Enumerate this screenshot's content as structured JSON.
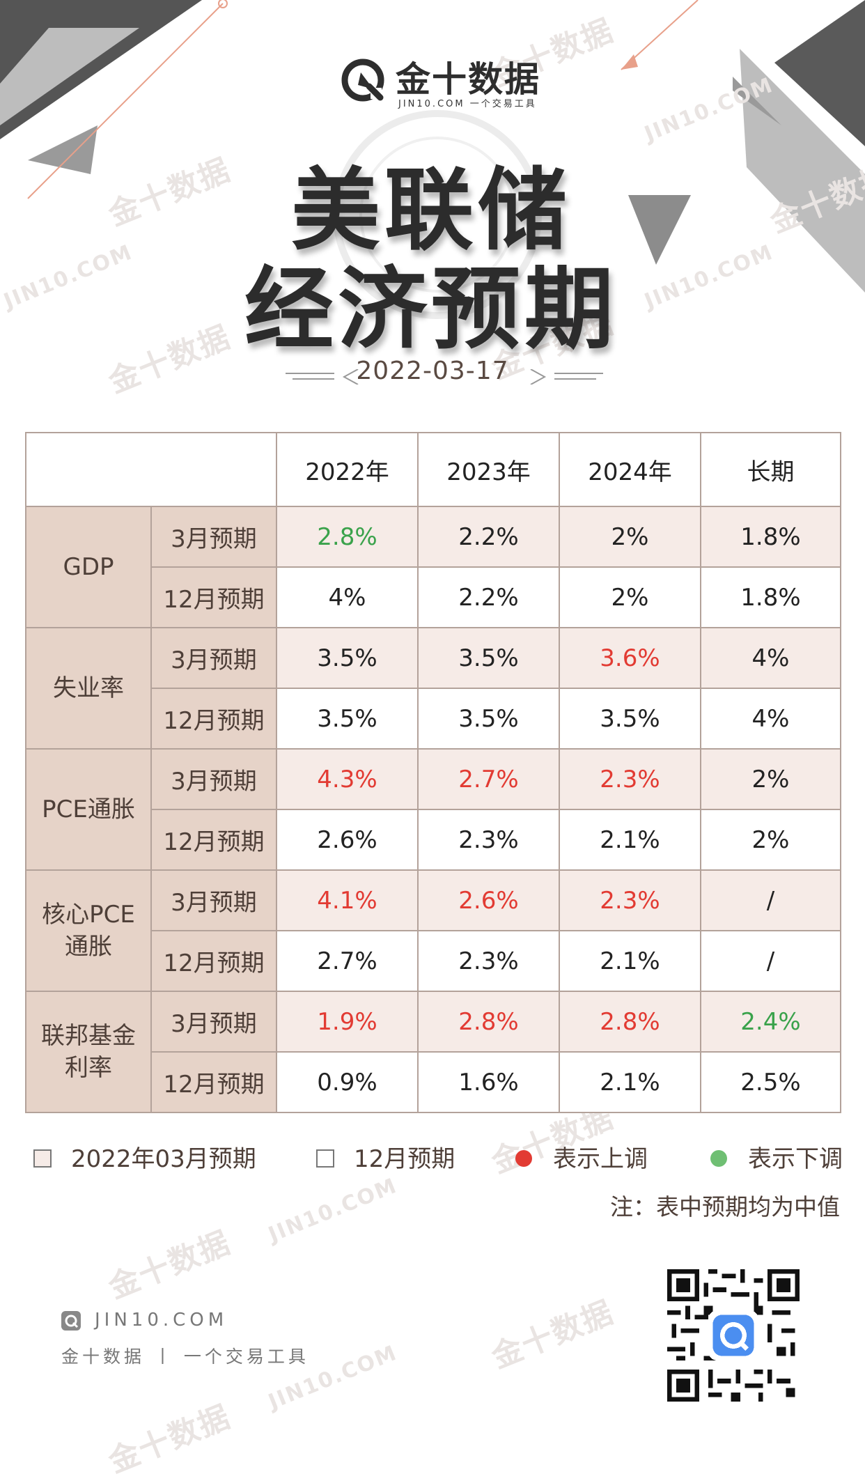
{
  "brand": {
    "name": "金十数据",
    "subtitle": "JIN10.COM 一个交易工具"
  },
  "title_line1": "美联储",
  "title_line2": "经济预期",
  "date": "2022-03-17",
  "table": {
    "headers": [
      "2022年",
      "2023年",
      "2024年",
      "长期"
    ],
    "rows": [
      {
        "category": "GDP",
        "march": {
          "label": "3月预期",
          "values": [
            "2.8%",
            "2.2%",
            "2%",
            "1.8%"
          ]
        },
        "dec": {
          "label": "12月预期",
          "values": [
            "4%",
            "2.2%",
            "2%",
            "1.8%"
          ]
        }
      },
      {
        "category": "失业率",
        "march": {
          "label": "3月预期",
          "values": [
            "3.5%",
            "3.5%",
            "3.6%",
            "4%"
          ]
        },
        "dec": {
          "label": "12月预期",
          "values": [
            "3.5%",
            "3.5%",
            "3.5%",
            "4%"
          ]
        }
      },
      {
        "category": "PCE通胀",
        "march": {
          "label": "3月预期",
          "values": [
            "4.3%",
            "2.7%",
            "2.3%",
            "2%"
          ]
        },
        "dec": {
          "label": "12月预期",
          "values": [
            "2.6%",
            "2.3%",
            "2.1%",
            "2%"
          ]
        }
      },
      {
        "category": "核心PCE通胀",
        "march": {
          "label": "3月预期",
          "values": [
            "4.1%",
            "2.6%",
            "2.3%",
            "/"
          ]
        },
        "dec": {
          "label": "12月预期",
          "values": [
            "2.7%",
            "2.3%",
            "2.1%",
            "/"
          ]
        }
      },
      {
        "category": "联邦基金利率",
        "march": {
          "label": "3月预期",
          "values": [
            "1.9%",
            "2.8%",
            "2.8%",
            "2.4%"
          ]
        },
        "dec": {
          "label": "12月预期",
          "values": [
            "0.9%",
            "1.6%",
            "2.1%",
            "2.5%"
          ]
        }
      }
    ],
    "category_lines": {
      "核心PCE通胀": [
        "核心PCE",
        "通胀"
      ],
      "联邦基金利率": [
        "联邦基金",
        "利率"
      ]
    },
    "march_status": [
      [
        "down",
        "same",
        "same",
        "same"
      ],
      [
        "same",
        "same",
        "up",
        "same"
      ],
      [
        "up",
        "up",
        "up",
        "same"
      ],
      [
        "up",
        "up",
        "up",
        "same"
      ],
      [
        "up",
        "up",
        "up",
        "down"
      ]
    ]
  },
  "legend": {
    "march": "2022年03月预期",
    "dec": "12月预期",
    "up": "表示上调",
    "down": "表示下调"
  },
  "colors": {
    "up": "#e23b33",
    "down": "#3aa24b",
    "march_bg": "#f6ebe7",
    "label_bg": "#e6d3c8"
  },
  "note": "注：表中预期均为中值",
  "footer": {
    "site": "JIN10.COM",
    "tagline": "金十数据 丨 一个交易工具"
  }
}
